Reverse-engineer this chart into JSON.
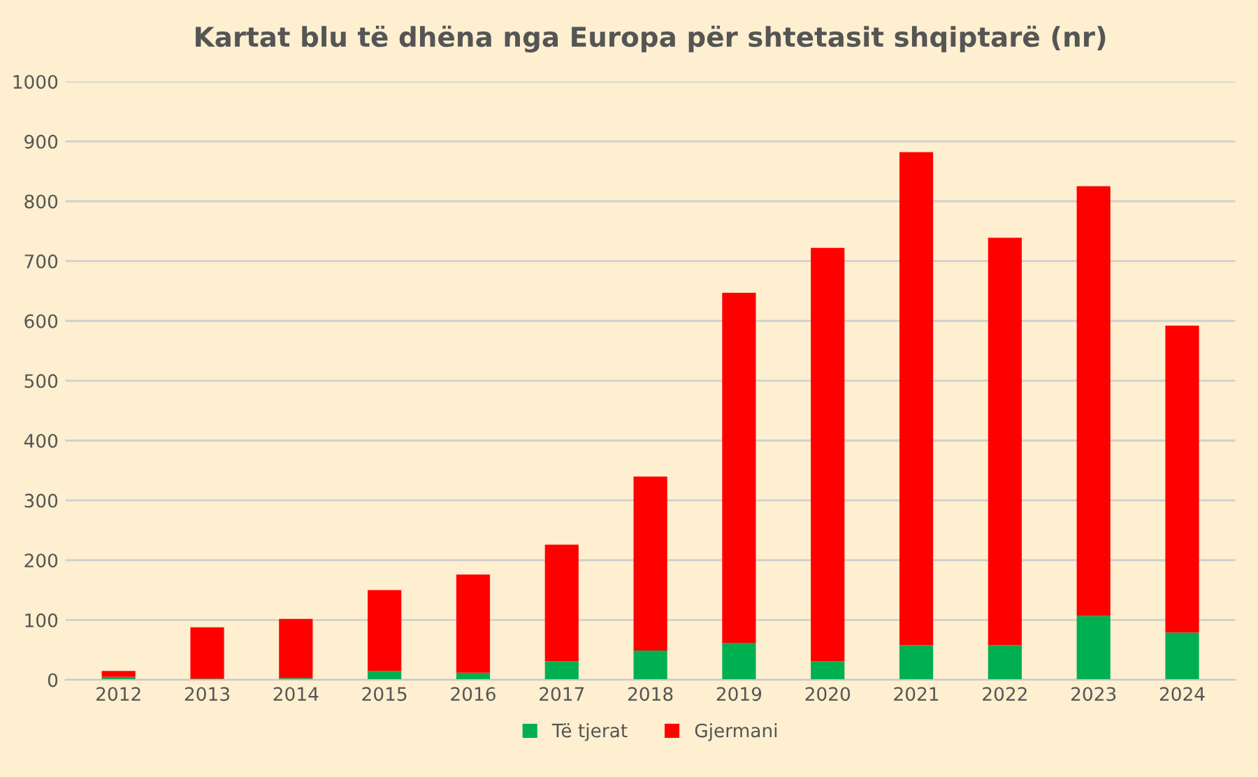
{
  "chart_data": {
    "type": "bar",
    "title": "Kartat blu të dhëna nga Europa për shtetasit shqiptarë (nr)",
    "categories": [
      "2012",
      "2013",
      "2014",
      "2015",
      "2016",
      "2017",
      "2018",
      "2019",
      "2020",
      "2021",
      "2022",
      "2023",
      "2024"
    ],
    "series": [
      {
        "name": "Të tjerat",
        "color": "#00b050",
        "values": [
          5,
          2,
          3,
          15,
          12,
          31,
          49,
          62,
          31,
          58,
          58,
          107,
          79
        ]
      },
      {
        "name": "Gjermani",
        "color": "#ff0000",
        "values": [
          10,
          86,
          99,
          135,
          164,
          195,
          291,
          585,
          691,
          824,
          681,
          718,
          513
        ]
      }
    ],
    "stacked": true,
    "ylim": [
      0,
      1000
    ],
    "yticks": [
      0,
      100,
      200,
      300,
      400,
      500,
      600,
      700,
      800,
      900,
      1000
    ],
    "grid": "y",
    "legend": "bottom"
  }
}
